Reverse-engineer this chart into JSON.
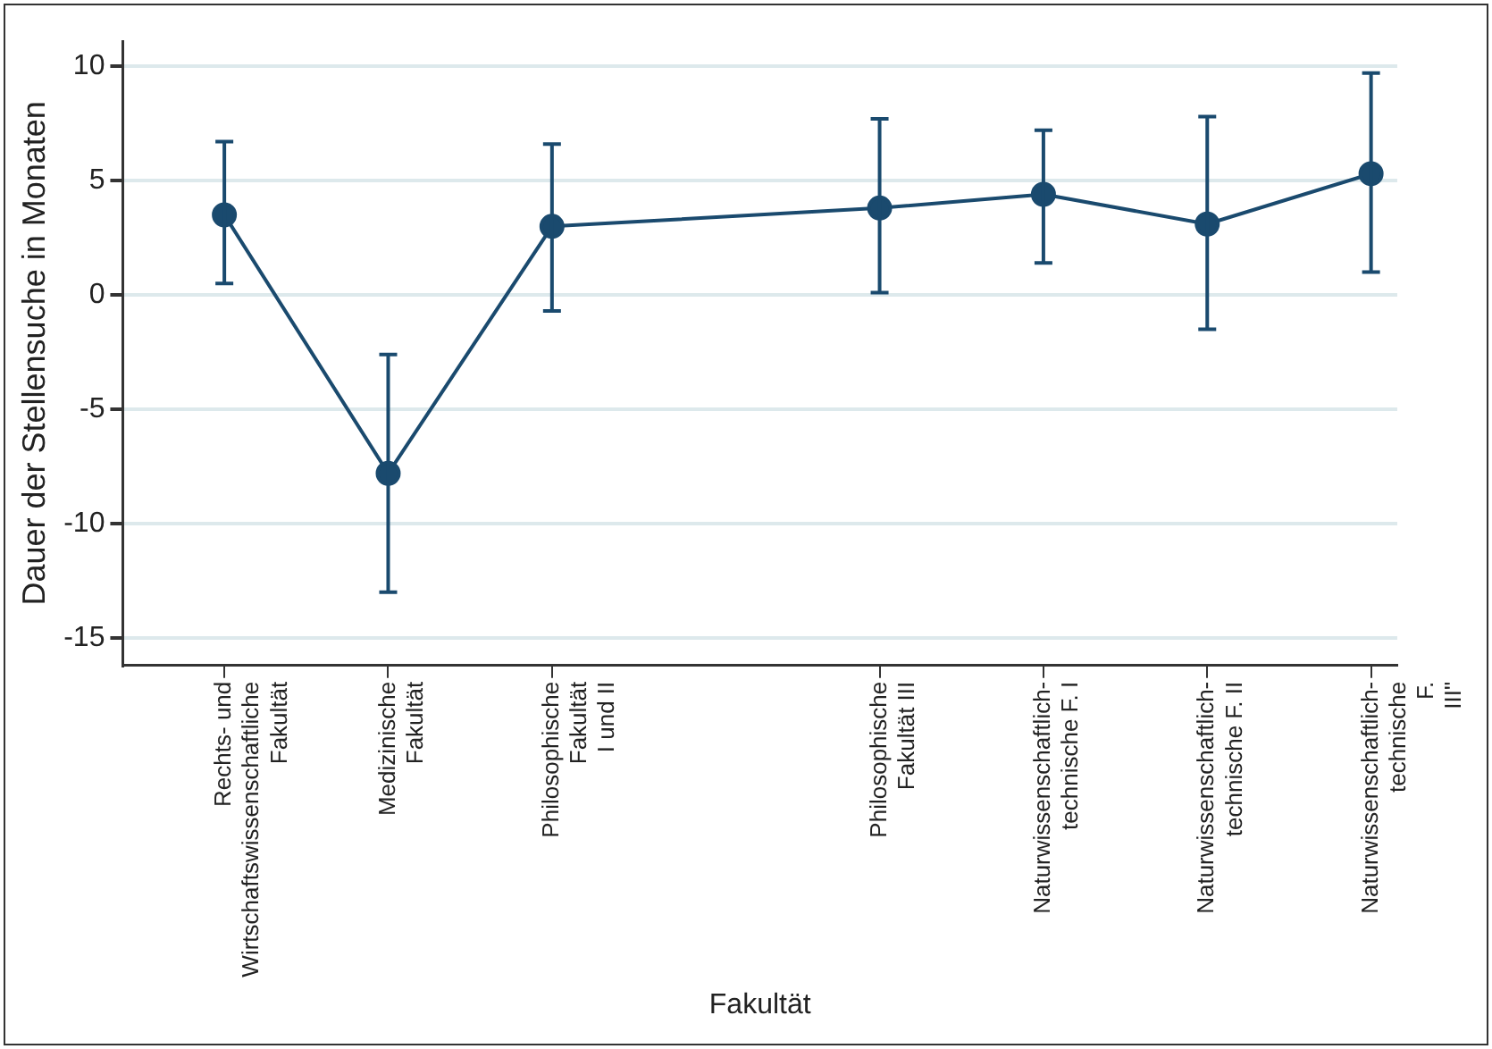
{
  "chart_data": {
    "type": "line",
    "xlabel": "Fakultät",
    "ylabel": "Dauer der Stellensuche in Monaten",
    "categories": [
      "Rechts- und\nWirtschaftswissenschaftliche\nFakultät",
      "Medizinische\nFakultät",
      "Philosophische\nFakultät\nI und II",
      null,
      "Philosophische\nFakultät III",
      "Naturwissenschaftlich-\ntechnische F. I",
      "Naturwissenschaftlich-\ntechnische F. II",
      "Naturwissenschaftlich-\ntechnische\nF.\nIII\""
    ],
    "series": [
      {
        "color": "#1a4a6e",
        "values": [
          3.5,
          -7.8,
          3.0,
          null,
          3.8,
          4.4,
          3.1,
          5.3
        ],
        "errors": [
          [
            0.5,
            6.7
          ],
          [
            -13.0,
            -2.6
          ],
          [
            -0.7,
            6.6
          ],
          null,
          [
            0.1,
            7.7
          ],
          [
            1.4,
            7.2
          ],
          [
            -1.5,
            7.8
          ],
          [
            1.0,
            9.7
          ]
        ]
      }
    ],
    "ylim": [
      -16.2,
      11.1
    ],
    "yticks": [
      -15,
      -10,
      -5,
      0,
      5,
      10
    ],
    "grid": "y",
    "marker": "circle",
    "line_style": "solid",
    "legend": false
  }
}
